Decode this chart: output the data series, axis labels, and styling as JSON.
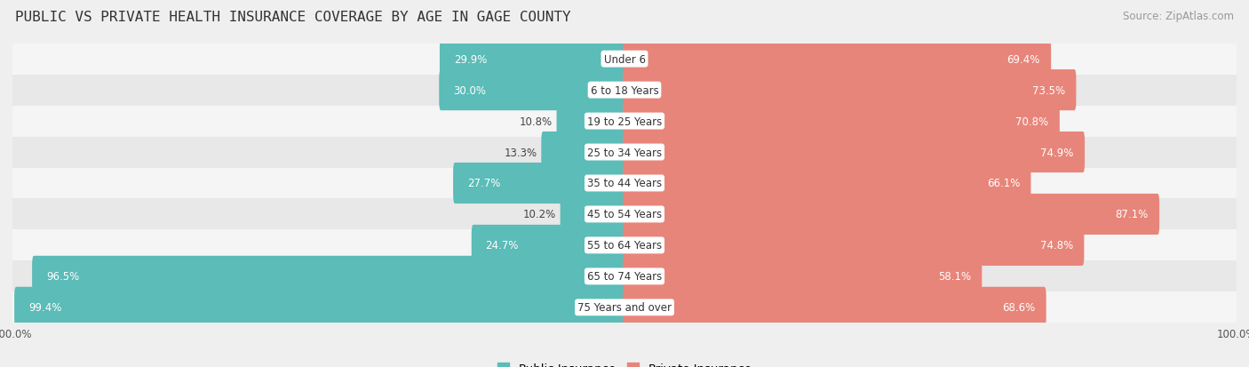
{
  "title": "PUBLIC VS PRIVATE HEALTH INSURANCE COVERAGE BY AGE IN GAGE COUNTY",
  "source": "Source: ZipAtlas.com",
  "categories": [
    "Under 6",
    "6 to 18 Years",
    "19 to 25 Years",
    "25 to 34 Years",
    "35 to 44 Years",
    "45 to 54 Years",
    "55 to 64 Years",
    "65 to 74 Years",
    "75 Years and over"
  ],
  "public_values": [
    29.9,
    30.0,
    10.8,
    13.3,
    27.7,
    10.2,
    24.7,
    96.5,
    99.4
  ],
  "private_values": [
    69.4,
    73.5,
    70.8,
    74.9,
    66.1,
    87.1,
    74.8,
    58.1,
    68.6
  ],
  "public_color": "#5bbcb8",
  "private_color": "#e8857a",
  "background_color": "#efefef",
  "row_bg_even": "#f5f5f5",
  "row_bg_odd": "#e8e8e8",
  "label_bg": "#ffffff",
  "max_value": 100.0,
  "title_fontsize": 11.5,
  "source_fontsize": 8.5,
  "label_fontsize": 8.5,
  "value_fontsize": 8.5,
  "legend_fontsize": 9.5,
  "tick_fontsize": 8.5
}
